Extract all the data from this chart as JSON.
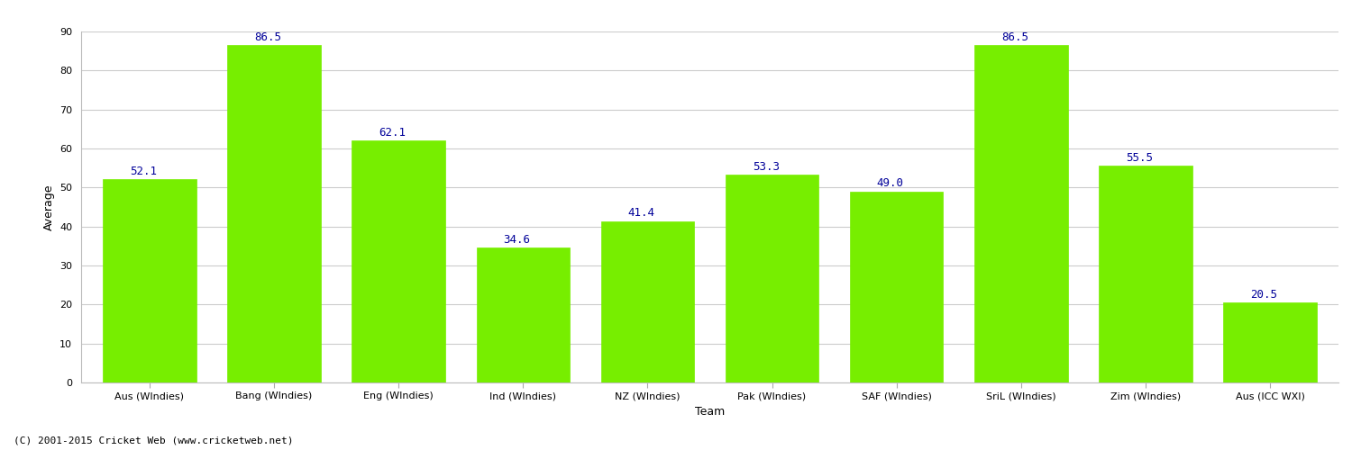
{
  "categories": [
    "Aus (WIndies)",
    "Bang (WIndies)",
    "Eng (WIndies)",
    "Ind (WIndies)",
    "NZ (WIndies)",
    "Pak (WIndies)",
    "SAF (WIndies)",
    "SriL (WIndies)",
    "Zim (WIndies)",
    "Aus (ICC WXI)"
  ],
  "values": [
    52.1,
    86.5,
    62.1,
    34.6,
    41.4,
    53.3,
    49.0,
    86.5,
    55.5,
    20.5
  ],
  "bar_color": "#77ee00",
  "bar_edge_color": "#77ee00",
  "xlabel": "Team",
  "ylabel": "Average",
  "ylim": [
    0,
    90
  ],
  "yticks": [
    0,
    10,
    20,
    30,
    40,
    50,
    60,
    70,
    80,
    90
  ],
  "label_color": "#000099",
  "label_fontsize": 9,
  "axis_label_fontsize": 9,
  "tick_fontsize": 8,
  "copyright": "(C) 2001-2015 Cricket Web (www.cricketweb.net)",
  "copyright_fontsize": 8,
  "background_color": "#ffffff",
  "grid_color": "#cccccc",
  "grid_linewidth": 0.8,
  "bar_width": 0.75
}
